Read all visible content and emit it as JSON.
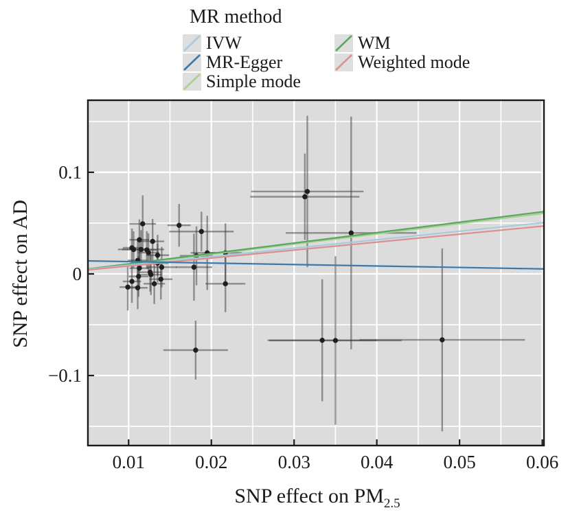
{
  "figure": {
    "legend": {
      "title": "MR method",
      "items": [
        {
          "label": "IVW",
          "color": "#a9cade"
        },
        {
          "label": "MR-Egger",
          "color": "#3b79ac"
        },
        {
          "label": "Simple mode",
          "color": "#a8d08f"
        },
        {
          "label": "WM",
          "color": "#56a863"
        },
        {
          "label": "Weighted mode",
          "color": "#dd8f8f"
        }
      ]
    }
  },
  "chart_data": {
    "type": "scatter",
    "title": "",
    "xlabel_main": "SNP effect on PM",
    "xlabel_sub": "2.5",
    "ylabel": "SNP effect on AD",
    "xlim": [
      0.00508,
      0.0602
    ],
    "ylim": [
      -0.1689,
      0.1709
    ],
    "x_ticks": {
      "values": [
        0.01,
        0.02,
        0.03,
        0.04,
        0.05,
        0.06
      ],
      "labels": [
        "0.01",
        "0.02",
        "0.03",
        "0.04",
        "0.05",
        "0.06"
      ]
    },
    "y_ticks": {
      "values": [
        0.1,
        0,
        -0.1
      ],
      "labels": [
        "0.1",
        "0",
        "−0.1"
      ]
    },
    "x_grid_minor": [
      0.015,
      0.025,
      0.035,
      0.045,
      0.055
    ],
    "y_grid_minor": [
      0.15,
      0.05,
      -0.05,
      -0.15
    ],
    "colors": {
      "panel_bg": "#dcdcdc",
      "grid": "#ffffff",
      "border": "#1a1a1a",
      "text": "#1a1a1a",
      "point": "#1f1f1f",
      "errorbar": "#3c3c3c"
    },
    "points": [
      {
        "x": 0.0117,
        "y": 0.0493,
        "xe": 0.0016,
        "ye": 0.028
      },
      {
        "x": 0.0161,
        "y": 0.0478,
        "xe": 0.0014,
        "ye": 0.021
      },
      {
        "x": 0.0188,
        "y": 0.0417,
        "xe": 0.0039,
        "ye": 0.0195
      },
      {
        "x": 0.0113,
        "y": 0.0336,
        "xe": 0.0012,
        "ye": 0.02
      },
      {
        "x": 0.0129,
        "y": 0.032,
        "xe": 0.0014,
        "ye": 0.022
      },
      {
        "x": 0.0104,
        "y": 0.0257,
        "xe": 0.0011,
        "ye": 0.019
      },
      {
        "x": 0.0106,
        "y": 0.024,
        "xe": 0.0014,
        "ye": 0.018
      },
      {
        "x": 0.0115,
        "y": 0.0241,
        "xe": 0.0028,
        "ye": 0.019
      },
      {
        "x": 0.0122,
        "y": 0.0236,
        "xe": 0.0012,
        "ye": 0.0185
      },
      {
        "x": 0.0124,
        "y": 0.021,
        "xe": 0.0013,
        "ye": 0.019
      },
      {
        "x": 0.0135,
        "y": 0.0184,
        "xe": 0.0014,
        "ye": 0.02
      },
      {
        "x": 0.0111,
        "y": 0.0133,
        "xe": 0.0012,
        "ye": 0.021
      },
      {
        "x": 0.0135,
        "y": 0.0106,
        "xe": 0.0013,
        "ye": 0.019
      },
      {
        "x": 0.014,
        "y": 0.0066,
        "xe": 0.0018,
        "ye": 0.02
      },
      {
        "x": 0.0113,
        "y": 0.0056,
        "xe": 0.0012,
        "ye": 0.02
      },
      {
        "x": 0.0126,
        "y": 0.0016,
        "xe": 0.0013,
        "ye": 0.019
      },
      {
        "x": 0.0127,
        "y": -0.0007,
        "xe": 0.0013,
        "ye": 0.02
      },
      {
        "x": 0.0112,
        "y": -0.0025,
        "xe": 0.0012,
        "ye": 0.02
      },
      {
        "x": 0.0104,
        "y": -0.0074,
        "xe": 0.0011,
        "ye": 0.021
      },
      {
        "x": 0.0139,
        "y": -0.0052,
        "xe": 0.0014,
        "ye": 0.02
      },
      {
        "x": 0.0099,
        "y": -0.013,
        "xe": 0.001,
        "ye": 0.023
      },
      {
        "x": 0.0111,
        "y": -0.0137,
        "xe": 0.0012,
        "ye": 0.021
      },
      {
        "x": 0.0131,
        "y": -0.0097,
        "xe": 0.0013,
        "ye": 0.02
      },
      {
        "x": 0.0182,
        "y": 0.0178,
        "xe": 0.002,
        "ye": 0.029
      },
      {
        "x": 0.0195,
        "y": 0.0207,
        "xe": 0.002,
        "ye": 0.0365
      },
      {
        "x": 0.0217,
        "y": 0.0207,
        "xe": 0.002,
        "ye": 0.029
      },
      {
        "x": 0.0179,
        "y": 0.0066,
        "xe": 0.0022,
        "ye": 0.033
      },
      {
        "x": 0.0217,
        "y": -0.0097,
        "xe": 0.0024,
        "ye": 0.028
      },
      {
        "x": 0.0181,
        "y": -0.075,
        "xe": 0.0039,
        "ye": 0.029
      },
      {
        "x": 0.0316,
        "y": 0.0811,
        "xe": 0.0068,
        "ye": 0.0745
      },
      {
        "x": 0.0313,
        "y": 0.0759,
        "xe": 0.0066,
        "ye": 0.0425
      },
      {
        "x": 0.0369,
        "y": 0.0403,
        "xe": 0.0079,
        "ye": 0.1145
      },
      {
        "x": 0.0334,
        "y": -0.0653,
        "xe": 0.0066,
        "ye": 0.06
      },
      {
        "x": 0.035,
        "y": -0.0655,
        "xe": 0.008,
        "ye": 0.083
      },
      {
        "x": 0.0479,
        "y": -0.0649,
        "xe": 0.01,
        "ye": 0.09
      }
    ],
    "mr_lines": [
      {
        "method": "Simple mode",
        "color": "#a8d08f",
        "y_start": 0.0044,
        "y_end": 0.0596
      },
      {
        "method": "WM",
        "color": "#56a863",
        "y_start": 0.0048,
        "y_end": 0.0613
      },
      {
        "method": "IVW",
        "color": "#a9cade",
        "y_start": 0.0045,
        "y_end": 0.0505
      },
      {
        "method": "Weighted mode",
        "color": "#dd8f8f",
        "y_start": 0.0039,
        "y_end": 0.0471
      },
      {
        "method": "MR-Egger",
        "color": "#3b79ac",
        "y_start": 0.0128,
        "y_end": 0.0049
      }
    ]
  }
}
